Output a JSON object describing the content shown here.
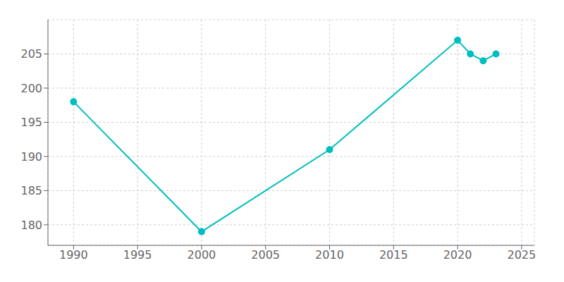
{
  "chart_data": {
    "type": "line",
    "x": [
      1990,
      2000,
      2010,
      2020,
      2021,
      2022,
      2023
    ],
    "values": [
      198,
      179,
      191,
      207,
      205,
      204,
      205
    ],
    "color": "#00BEBE",
    "marker": "circle",
    "xlim": [
      1988,
      2026
    ],
    "ylim": [
      177,
      210
    ],
    "xticks": [
      1990,
      1995,
      2000,
      2005,
      2010,
      2015,
      2020,
      2025
    ],
    "yticks": [
      180,
      185,
      190,
      195,
      200,
      205
    ],
    "grid": true
  }
}
